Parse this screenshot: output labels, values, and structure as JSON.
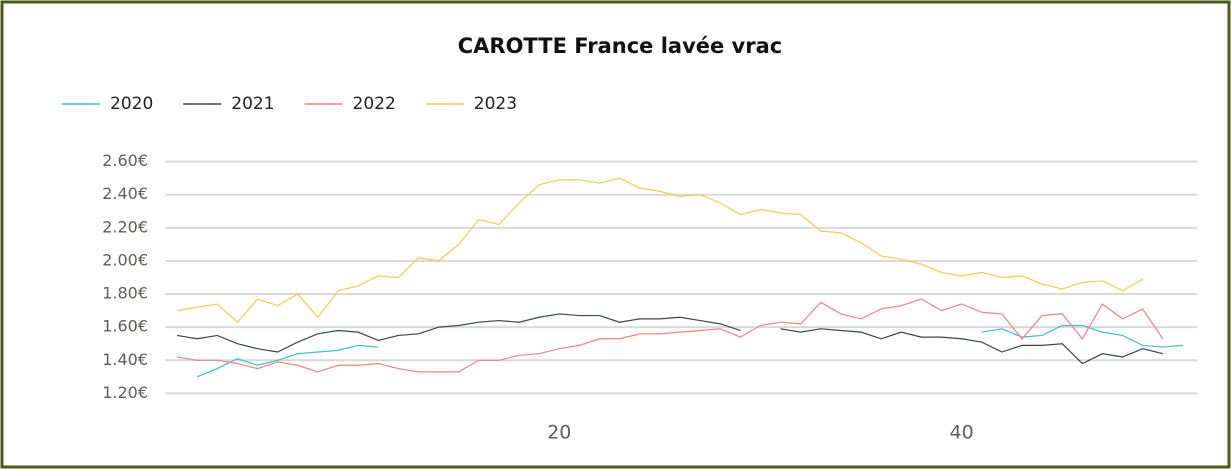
{
  "chart_data": {
    "type": "line",
    "title": "CAROTTE France lavée vrac",
    "x": [
      1,
      2,
      3,
      4,
      5,
      6,
      7,
      8,
      9,
      10,
      11,
      12,
      13,
      14,
      15,
      16,
      17,
      18,
      19,
      20,
      21,
      22,
      23,
      24,
      25,
      26,
      27,
      28,
      29,
      30,
      31,
      32,
      33,
      34,
      35,
      36,
      37,
      38,
      39,
      40,
      41,
      42,
      43,
      44,
      45,
      46,
      47,
      48,
      49,
      50,
      51
    ],
    "xlim": [
      0.4,
      51.7
    ],
    "xticks": [
      20,
      40
    ],
    "ylim": [
      1.13,
      2.67
    ],
    "yticks": [
      {
        "value": 1.2,
        "label": "1.20€"
      },
      {
        "value": 1.4,
        "label": "1.40€"
      },
      {
        "value": 1.6,
        "label": "1.60€"
      },
      {
        "value": 1.8,
        "label": "1.80€"
      },
      {
        "value": 2.0,
        "label": "2.00€"
      },
      {
        "value": 2.2,
        "label": "2.20€"
      },
      {
        "value": 2.4,
        "label": "2.40€"
      },
      {
        "value": 2.6,
        "label": "2.60€"
      }
    ],
    "grid": true,
    "legend": "top-left",
    "series": [
      {
        "name": "2020",
        "color": "#3fbfc6",
        "values": [
          null,
          1.3,
          1.35,
          1.41,
          1.37,
          1.4,
          1.44,
          1.45,
          1.46,
          1.49,
          1.48,
          null,
          null,
          null,
          null,
          null,
          null,
          null,
          null,
          null,
          null,
          null,
          null,
          null,
          null,
          null,
          null,
          null,
          null,
          null,
          null,
          null,
          null,
          null,
          null,
          null,
          null,
          null,
          null,
          null,
          1.57,
          1.59,
          1.54,
          1.55,
          1.61,
          1.61,
          1.57,
          1.55,
          1.49,
          1.48,
          1.49
        ]
      },
      {
        "name": "2021",
        "color": "#3b4450",
        "values": [
          1.55,
          1.53,
          1.55,
          1.5,
          1.47,
          1.45,
          1.51,
          1.56,
          1.58,
          1.57,
          1.52,
          1.55,
          1.56,
          1.6,
          1.61,
          1.63,
          1.64,
          1.63,
          1.66,
          1.68,
          1.67,
          1.67,
          1.63,
          1.65,
          1.65,
          1.66,
          1.64,
          1.62,
          1.58,
          null,
          1.59,
          1.57,
          1.59,
          1.58,
          1.57,
          1.53,
          1.57,
          1.54,
          1.54,
          1.53,
          1.51,
          1.45,
          1.49,
          1.49,
          1.5,
          1.38,
          1.44,
          1.42,
          1.47,
          1.44,
          null
        ]
      },
      {
        "name": "2022",
        "color": "#f4827f",
        "values": [
          1.42,
          1.4,
          1.4,
          1.38,
          1.35,
          1.39,
          1.37,
          1.33,
          1.37,
          1.37,
          1.38,
          1.35,
          1.33,
          1.33,
          1.33,
          1.4,
          1.4,
          1.43,
          1.44,
          1.47,
          1.49,
          1.53,
          1.53,
          1.56,
          1.56,
          1.57,
          1.58,
          1.59,
          1.54,
          1.61,
          1.63,
          1.62,
          1.75,
          1.68,
          1.65,
          1.71,
          1.73,
          1.77,
          1.7,
          1.74,
          1.69,
          1.68,
          1.53,
          1.67,
          1.68,
          1.53,
          1.74,
          1.65,
          1.71,
          1.53,
          null
        ]
      },
      {
        "name": "2023",
        "color": "#f2cc4f",
        "values": [
          1.7,
          1.72,
          1.74,
          1.63,
          1.77,
          1.73,
          1.8,
          1.66,
          1.82,
          1.85,
          1.91,
          1.9,
          2.02,
          2.0,
          2.1,
          2.25,
          2.22,
          2.35,
          2.46,
          2.49,
          2.49,
          2.47,
          2.5,
          2.44,
          2.42,
          2.39,
          2.4,
          2.35,
          2.28,
          2.31,
          2.29,
          2.28,
          2.18,
          2.17,
          2.11,
          2.03,
          2.01,
          1.98,
          1.93,
          1.91,
          1.93,
          1.9,
          1.91,
          1.86,
          1.83,
          1.87,
          1.88,
          1.82,
          1.89,
          null,
          null
        ]
      }
    ]
  }
}
